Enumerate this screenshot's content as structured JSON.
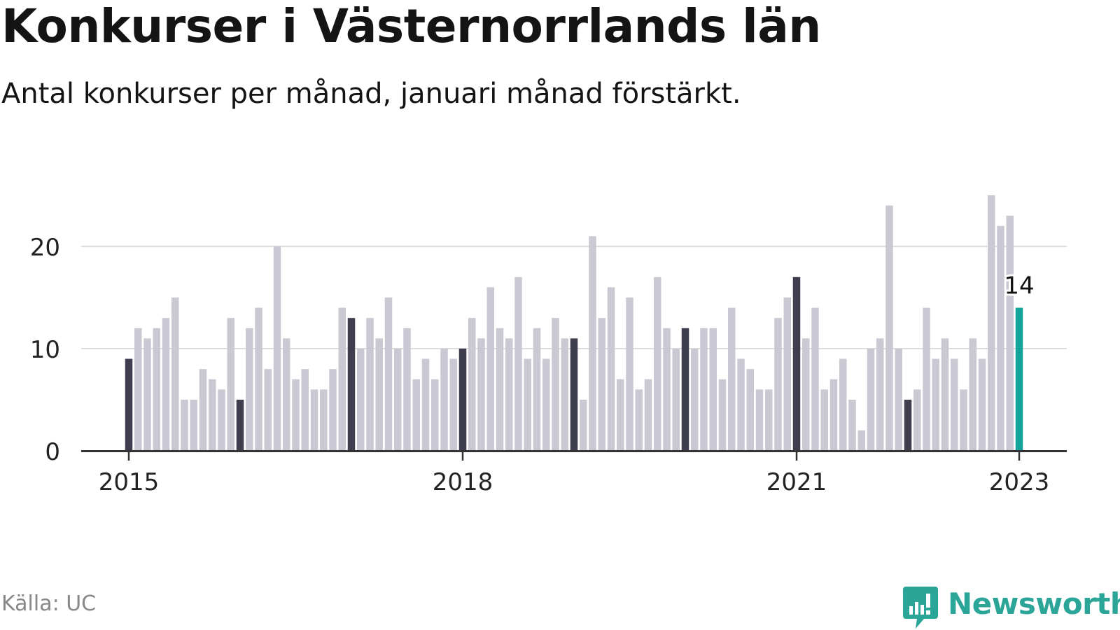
{
  "header": {
    "title": "Konkurser i Västernorrlands län",
    "subtitle": "Antal konkurser per månad, januari månad förstärkt."
  },
  "footer": {
    "source": "Källa: UC",
    "brand": "Newsworthy"
  },
  "colors": {
    "bar": "#c9c8d3",
    "january_bar": "#3e3e4e",
    "latest_bar": "#14a39a",
    "grid": "#dddddd",
    "axis": "#333333",
    "brand": "#2aa597"
  },
  "chart_data": {
    "type": "bar",
    "title": "Konkurser i Västernorrlands län",
    "subtitle": "Antal konkurser per månad, januari månad förstärkt.",
    "xlabel": "",
    "ylabel": "",
    "ylim": [
      0,
      25
    ],
    "yticks": [
      0,
      10,
      20
    ],
    "xtick_labels": [
      "2015",
      "2018",
      "2021",
      "2023"
    ],
    "grid": true,
    "start_month": "2015-01",
    "values": [
      9,
      12,
      11,
      12,
      13,
      15,
      5,
      5,
      8,
      7,
      6,
      13,
      5,
      12,
      14,
      8,
      20,
      11,
      7,
      8,
      6,
      6,
      8,
      14,
      13,
      10,
      13,
      11,
      15,
      10,
      12,
      7,
      9,
      7,
      10,
      9,
      10,
      13,
      11,
      16,
      12,
      11,
      17,
      9,
      12,
      9,
      13,
      11,
      11,
      5,
      21,
      13,
      16,
      7,
      15,
      6,
      7,
      17,
      12,
      10,
      12,
      10,
      12,
      12,
      7,
      14,
      9,
      8,
      6,
      6,
      13,
      15,
      17,
      11,
      14,
      6,
      7,
      9,
      5,
      2,
      10,
      11,
      24,
      10,
      5,
      6,
      14,
      9,
      11,
      9,
      6,
      11,
      9,
      25,
      22,
      23,
      14
    ],
    "highlight": "January bars emphasized; latest month highlighted",
    "latest_label": "14"
  }
}
